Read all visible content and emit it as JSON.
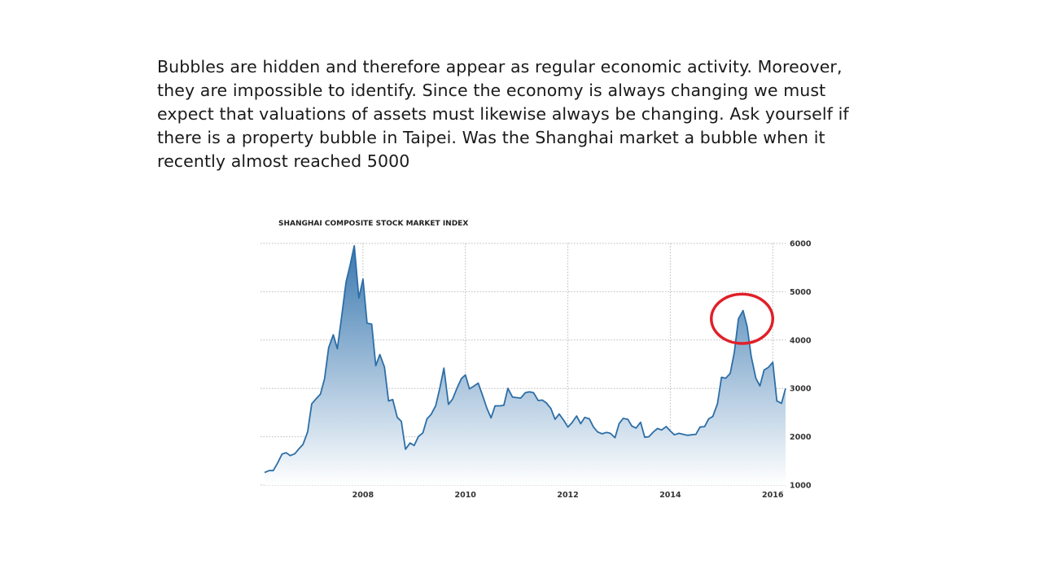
{
  "slide": {
    "text": "Bubbles are hidden and therefore appear as regular economic activity. Moreover, they are impossible to identify. Since the economy is always changing we must expect that valuations of assets must likewise always be changing. Ask yourself if there is a property bubble in Taipei. Was the Shanghai market a bubble when it recently almost reached 5000"
  },
  "colors": {
    "line": "#2d6ea6",
    "fill_top": "#3a78b0",
    "fill_bottom": "#ffffff",
    "grid": "#b9b9b9",
    "annotation": "#e0202a"
  },
  "chart_data": {
    "type": "area",
    "title": "SHANGHAI COMPOSITE STOCK MARKET INDEX",
    "xlabel": "",
    "ylabel": "",
    "xlim": [
      2006.0,
      2016.25
    ],
    "ylim": [
      1000,
      6000
    ],
    "x_ticks": [
      {
        "value": 2008,
        "label": "2008"
      },
      {
        "value": 2010,
        "label": "2010"
      },
      {
        "value": 2012,
        "label": "2012"
      },
      {
        "value": 2014,
        "label": "2014"
      },
      {
        "value": 2016,
        "label": "2016"
      }
    ],
    "y_ticks": [
      {
        "value": 6000,
        "label": "6000"
      },
      {
        "value": 5000,
        "label": "5000"
      },
      {
        "value": 4000,
        "label": "4000"
      },
      {
        "value": 3000,
        "label": "3000"
      },
      {
        "value": 2000,
        "label": "2000"
      },
      {
        "value": 1000,
        "label": "1000"
      }
    ],
    "y_axis_side": "right",
    "grid": "dotted",
    "annotation": {
      "shape": "ellipse",
      "center_x": 2015.4,
      "center_y": 4440,
      "rx_years": 0.6,
      "ry_value": 1020
    },
    "x": [
      2006.08,
      2006.17,
      2006.25,
      2006.33,
      2006.42,
      2006.5,
      2006.58,
      2006.67,
      2006.75,
      2006.83,
      2006.92,
      2007.0,
      2007.08,
      2007.17,
      2007.25,
      2007.33,
      2007.42,
      2007.5,
      2007.58,
      2007.67,
      2007.75,
      2007.83,
      2007.92,
      2008.0,
      2008.08,
      2008.17,
      2008.25,
      2008.33,
      2008.42,
      2008.5,
      2008.58,
      2008.67,
      2008.75,
      2008.83,
      2008.92,
      2009.0,
      2009.08,
      2009.17,
      2009.25,
      2009.33,
      2009.42,
      2009.5,
      2009.58,
      2009.67,
      2009.75,
      2009.83,
      2009.92,
      2010.0,
      2010.08,
      2010.17,
      2010.25,
      2010.33,
      2010.42,
      2010.5,
      2010.58,
      2010.67,
      2010.75,
      2010.83,
      2010.92,
      2011.0,
      2011.08,
      2011.17,
      2011.25,
      2011.33,
      2011.42,
      2011.5,
      2011.58,
      2011.67,
      2011.75,
      2011.83,
      2011.92,
      2012.0,
      2012.08,
      2012.17,
      2012.25,
      2012.33,
      2012.42,
      2012.5,
      2012.58,
      2012.67,
      2012.75,
      2012.83,
      2012.92,
      2013.0,
      2013.08,
      2013.17,
      2013.25,
      2013.33,
      2013.42,
      2013.5,
      2013.58,
      2013.67,
      2013.75,
      2013.83,
      2013.92,
      2014.0,
      2014.08,
      2014.17,
      2014.25,
      2014.33,
      2014.42,
      2014.5,
      2014.58,
      2014.67,
      2014.75,
      2014.83,
      2014.92,
      2015.0,
      2015.08,
      2015.17,
      2015.25,
      2015.33,
      2015.42,
      2015.5,
      2015.58,
      2015.67,
      2015.75,
      2015.83,
      2015.92,
      2016.0,
      2016.08,
      2016.17,
      2016.25
    ],
    "values": [
      1260,
      1300,
      1300,
      1450,
      1640,
      1670,
      1610,
      1650,
      1750,
      1840,
      2100,
      2680,
      2780,
      2880,
      3200,
      3840,
      4110,
      3820,
      4450,
      5200,
      5550,
      5950,
      4870,
      5260,
      4350,
      4330,
      3470,
      3700,
      3440,
      2740,
      2770,
      2400,
      2320,
      1740,
      1870,
      1820,
      2000,
      2080,
      2370,
      2460,
      2640,
      3000,
      3420,
      2670,
      2780,
      2990,
      3200,
      3280,
      2990,
      3050,
      3110,
      2870,
      2590,
      2390,
      2640,
      2640,
      2650,
      3000,
      2820,
      2810,
      2800,
      2910,
      2930,
      2910,
      2750,
      2760,
      2700,
      2580,
      2360,
      2470,
      2340,
      2200,
      2290,
      2430,
      2270,
      2400,
      2370,
      2200,
      2100,
      2060,
      2090,
      2070,
      1980,
      2270,
      2380,
      2360,
      2220,
      2180,
      2300,
      1990,
      2000,
      2100,
      2170,
      2140,
      2210,
      2120,
      2040,
      2070,
      2050,
      2030,
      2040,
      2050,
      2200,
      2210,
      2370,
      2420,
      2680,
      3230,
      3210,
      3310,
      3750,
      4440,
      4610,
      4280,
      3660,
      3210,
      3050,
      3380,
      3440,
      3540,
      2740,
      2690,
      3000
    ]
  }
}
